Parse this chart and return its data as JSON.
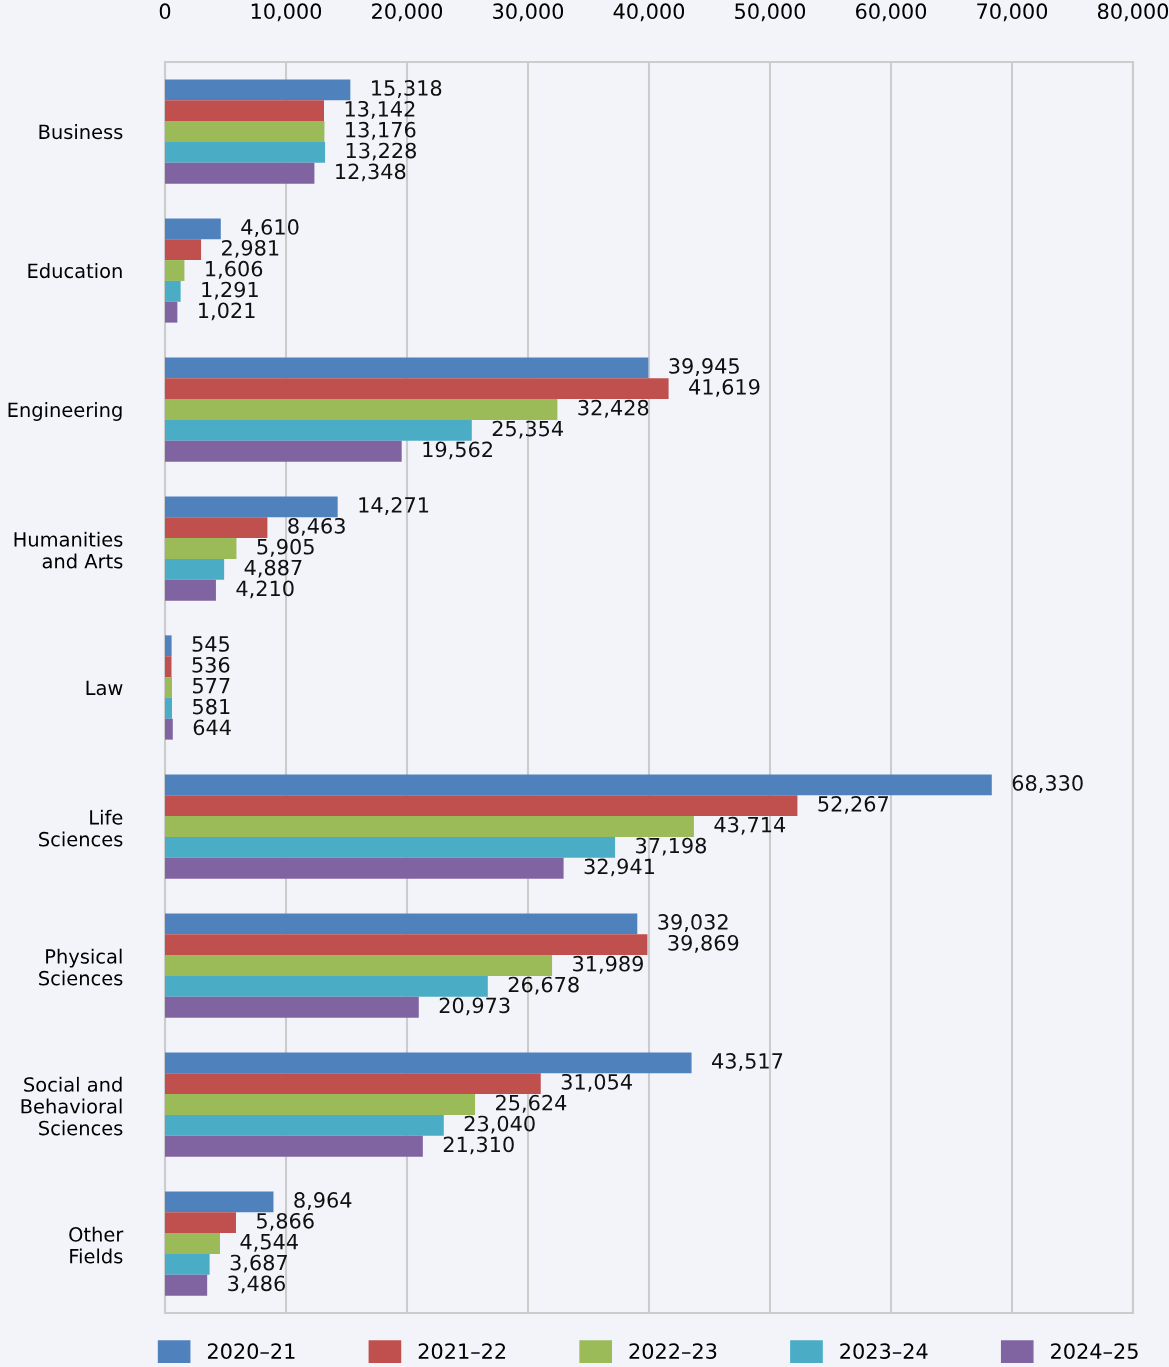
{
  "chart_data": {
    "type": "bar",
    "orientation": "horizontal",
    "categories": [
      "Business",
      "Education",
      "Engineering",
      "Humanities\nand Arts",
      "Law",
      "Life\nSciences",
      "Physical\nSciences",
      "Social and\nBehavioral\nSciences",
      "Other\nFields"
    ],
    "series": [
      {
        "name": "2020–21",
        "color": "#4f81bd",
        "values": [
          15318,
          4610,
          39945,
          14271,
          545,
          68330,
          39032,
          43517,
          8964
        ],
        "value_labels": [
          "15,318",
          "4,610",
          "39,945",
          "14,271",
          "545",
          "68,330",
          "39,032",
          "43,517",
          "8,964"
        ]
      },
      {
        "name": "2021–22",
        "color": "#c0504d",
        "values": [
          13142,
          2981,
          41619,
          8463,
          536,
          52267,
          39869,
          31054,
          5866
        ],
        "value_labels": [
          "13,142",
          "2,981",
          "41,619",
          "8,463",
          "536",
          "52,267",
          "39,869",
          "31,054",
          "5,866"
        ]
      },
      {
        "name": "2022–23",
        "color": "#9bbb59",
        "values": [
          13176,
          1606,
          32428,
          5905,
          577,
          43714,
          31989,
          25624,
          4544
        ],
        "value_labels": [
          "13,176",
          "1,606",
          "32,428",
          "5,905",
          "577",
          "43,714",
          "31,989",
          "25,624",
          "4,544"
        ]
      },
      {
        "name": "2023–24",
        "color": "#4bacc6",
        "values": [
          13228,
          1291,
          25354,
          4887,
          581,
          37198,
          26678,
          23040,
          3687
        ],
        "value_labels": [
          "13,228",
          "1,291",
          "25,354",
          "4,887",
          "581",
          "37,198",
          "26,678",
          "23,040",
          "3,687"
        ]
      },
      {
        "name": "2024–25",
        "color": "#8064a2",
        "values": [
          12348,
          1021,
          19562,
          4210,
          644,
          32941,
          20973,
          21310,
          3486
        ],
        "value_labels": [
          "12,348",
          "1,021",
          "19,562",
          "4,210",
          "644",
          "32,941",
          "20,973",
          "21,310",
          "3,486"
        ]
      }
    ],
    "xlim": [
      0,
      80000
    ],
    "xticks": [
      0,
      {
        "value": 10000,
        "label": "10,000"
      },
      {
        "value": 20000,
        "label": "20,000"
      },
      {
        "value": 30000,
        "label": "30,000"
      },
      {
        "value": 40000,
        "label": "40,000"
      },
      {
        "value": 50000,
        "label": "50,000"
      },
      {
        "value": 60000,
        "label": "60,000"
      },
      {
        "value": 70000,
        "label": "70,000"
      },
      {
        "value": 80000,
        "label": "80,000"
      }
    ],
    "grid": "x",
    "legend": "bottom"
  }
}
